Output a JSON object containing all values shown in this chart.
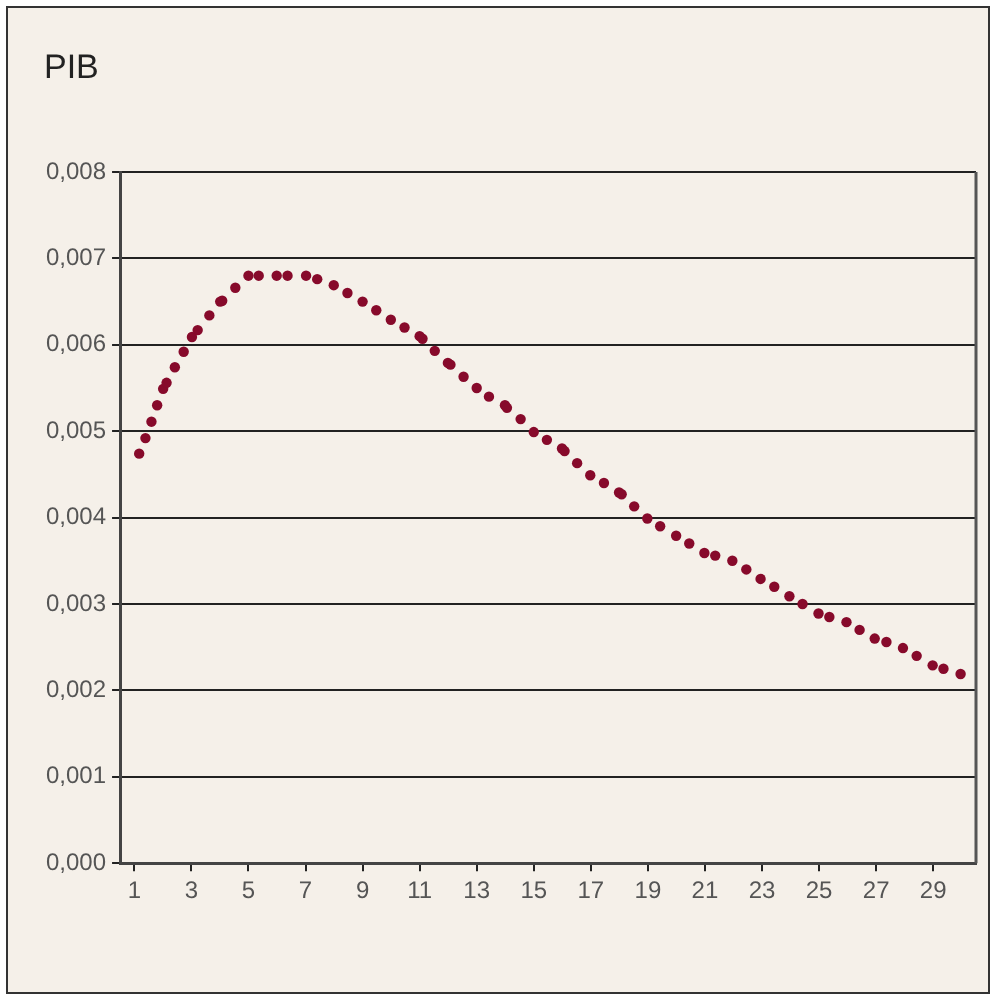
{
  "chart_data": {
    "type": "scatter",
    "title": "PIB",
    "marker": "circle",
    "grid": "y",
    "legend": false,
    "xlim": [
      0.5,
      30.5
    ],
    "xticks": [
      1,
      3,
      5,
      7,
      9,
      11,
      13,
      15,
      17,
      19,
      21,
      23,
      25,
      27,
      29
    ],
    "ylim": [
      0,
      0.008
    ],
    "yticks": [
      {
        "value": 0,
        "label": "0,000"
      },
      {
        "value": 0.001,
        "label": "0,001"
      },
      {
        "value": 0.002,
        "label": "0,002"
      },
      {
        "value": 0.003,
        "label": "0,003"
      },
      {
        "value": 0.004,
        "label": "0,004"
      },
      {
        "value": 0.005,
        "label": "0,005"
      },
      {
        "value": 0.006,
        "label": "0,006"
      },
      {
        "value": 0.007,
        "label": "0,007"
      },
      {
        "value": 0.008,
        "label": "0,008"
      }
    ],
    "series": [
      {
        "color": "#870a2b",
        "x": [
          1.17,
          1.39,
          1.6,
          1.8,
          2.01,
          2.13,
          2.42,
          2.73,
          3.02,
          3.22,
          3.63,
          4.01,
          4.08,
          4.54,
          5.0,
          5.36,
          5.99,
          6.37,
          7.02,
          7.41,
          7.99,
          8.47,
          9.0,
          9.48,
          9.99,
          10.47,
          11.0,
          11.1,
          11.53,
          11.99,
          12.08,
          12.54,
          13.0,
          13.43,
          13.99,
          14.06,
          14.54,
          15.0,
          15.46,
          15.99,
          16.08,
          16.52,
          16.98,
          17.46,
          17.99,
          18.08,
          18.52,
          18.98,
          19.43,
          19.99,
          20.45,
          20.98,
          21.36,
          21.96,
          22.45,
          22.95,
          23.43,
          23.96,
          24.42,
          24.98,
          25.36,
          25.96,
          26.42,
          26.95,
          27.36,
          27.94,
          28.42,
          28.98,
          29.36,
          29.96
        ],
        "values": [
          0.00474,
          0.00492,
          0.00511,
          0.0053,
          0.00549,
          0.00556,
          0.00574,
          0.00592,
          0.00609,
          0.00617,
          0.00634,
          0.0065,
          0.00651,
          0.00666,
          0.0068,
          0.0068,
          0.0068,
          0.0068,
          0.0068,
          0.00676,
          0.00669,
          0.0066,
          0.0065,
          0.0064,
          0.00629,
          0.0062,
          0.0061,
          0.00607,
          0.00593,
          0.00579,
          0.00577,
          0.00563,
          0.0055,
          0.0054,
          0.0053,
          0.00527,
          0.00514,
          0.00499,
          0.0049,
          0.0048,
          0.00477,
          0.00463,
          0.00449,
          0.0044,
          0.00429,
          0.00427,
          0.00413,
          0.00399,
          0.0039,
          0.00379,
          0.0037,
          0.00359,
          0.00356,
          0.0035,
          0.0034,
          0.00329,
          0.0032,
          0.00309,
          0.003,
          0.00289,
          0.00285,
          0.00279,
          0.0027,
          0.0026,
          0.00256,
          0.00249,
          0.0024,
          0.00229,
          0.00225,
          0.00219
        ]
      }
    ]
  }
}
